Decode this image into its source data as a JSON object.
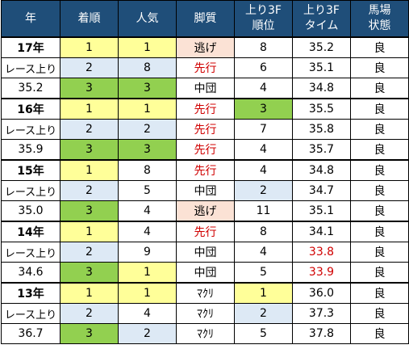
{
  "headers": [
    "年",
    "着順",
    "人気",
    "脚質",
    "上り3F",
    "順位",
    "上り3F",
    "タイム",
    "馬場",
    "状態"
  ],
  "race_time_label": "レース上り",
  "groups": [
    {
      "year": "17年",
      "race_time": "35.2",
      "rows": [
        {
          "finish": "1",
          "pop": "1",
          "style": "逃げ",
          "rank": "8",
          "time": "35.2",
          "track": "良"
        },
        {
          "finish": "2",
          "pop": "8",
          "style": "先行",
          "rank": "6",
          "time": "35.1",
          "track": "良"
        },
        {
          "finish": "3",
          "pop": "3",
          "style": "中団",
          "rank": "4",
          "time": "34.8",
          "track": "良"
        }
      ]
    },
    {
      "year": "16年",
      "race_time": "35.9",
      "rows": [
        {
          "finish": "1",
          "pop": "1",
          "style": "先行",
          "rank": "3",
          "time": "35.5",
          "track": "良"
        },
        {
          "finish": "2",
          "pop": "2",
          "style": "先行",
          "rank": "7",
          "time": "35.8",
          "track": "良"
        },
        {
          "finish": "3",
          "pop": "3",
          "style": "先行",
          "rank": "4",
          "time": "35.7",
          "track": "良"
        }
      ]
    },
    {
      "year": "15年",
      "race_time": "35.0",
      "rows": [
        {
          "finish": "1",
          "pop": "8",
          "style": "先行",
          "rank": "4",
          "time": "34.8",
          "track": "良"
        },
        {
          "finish": "2",
          "pop": "5",
          "style": "中団",
          "rank": "2",
          "time": "34.7",
          "track": "良"
        },
        {
          "finish": "3",
          "pop": "4",
          "style": "逃げ",
          "rank": "11",
          "time": "35.1",
          "track": "良"
        }
      ]
    },
    {
      "year": "14年",
      "race_time": "34.6",
      "rows": [
        {
          "finish": "1",
          "pop": "4",
          "style": "先行",
          "rank": "8",
          "time": "34.1",
          "track": "良"
        },
        {
          "finish": "2",
          "pop": "9",
          "style": "中団",
          "rank": "4",
          "time": "33.8",
          "track": "良"
        },
        {
          "finish": "3",
          "pop": "1",
          "style": "中団",
          "rank": "5",
          "time": "33.9",
          "track": "良"
        }
      ]
    },
    {
      "year": "13年",
      "race_time": "36.7",
      "rows": [
        {
          "finish": "1",
          "pop": "1",
          "style": "ﾏｸﾘ",
          "rank": "1",
          "time": "36.0",
          "track": "良"
        },
        {
          "finish": "2",
          "pop": "4",
          "style": "ﾏｸﾘ",
          "rank": "2",
          "time": "37.3",
          "track": "良"
        },
        {
          "finish": "3",
          "pop": "2",
          "style": "ﾏｸﾘ",
          "rank": "5",
          "time": "37.8",
          "track": "良"
        }
      ]
    }
  ],
  "colors": {
    "header_bg": "#1f4e79",
    "yellow": "#ffff99",
    "light_blue": "#dde9f5",
    "green": "#92d050",
    "peach": "#fbe2d5",
    "red_text": "#d00000"
  }
}
